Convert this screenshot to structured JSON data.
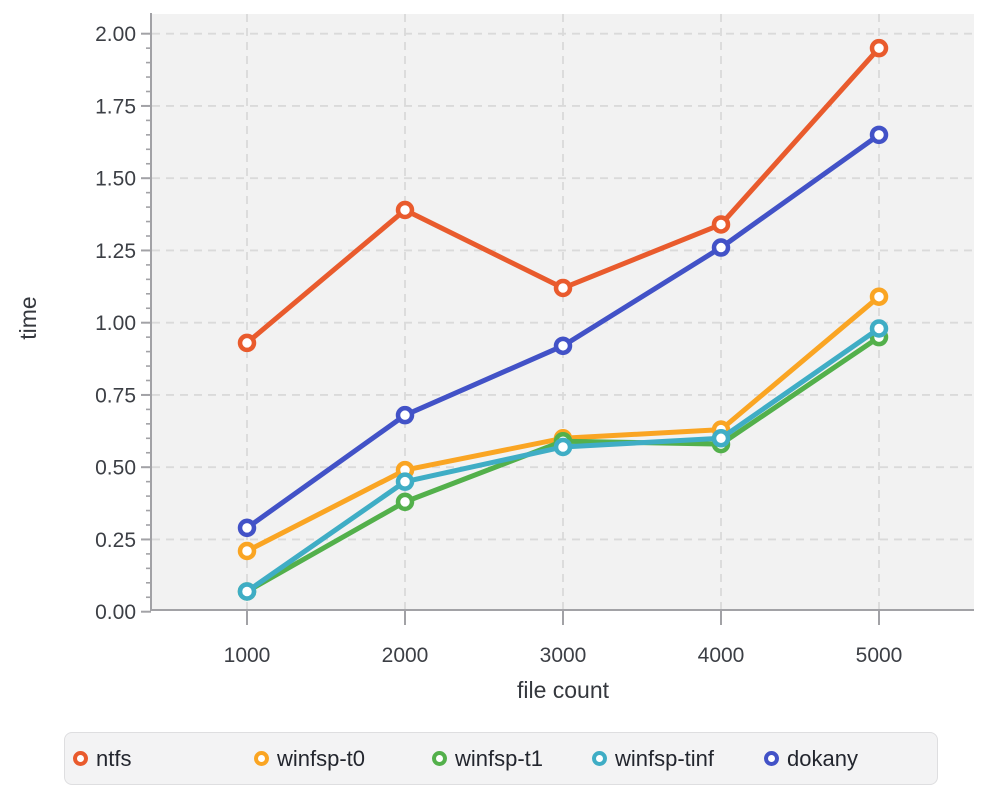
{
  "chart_data": {
    "type": "line",
    "title": "",
    "xlabel": "file count",
    "ylabel": "time",
    "x": [
      1000,
      2000,
      3000,
      4000,
      5000
    ],
    "xtick_labels": [
      "1000",
      "2000",
      "3000",
      "4000",
      "5000"
    ],
    "yticks": [
      0,
      0.25,
      0.5,
      0.75,
      1.0,
      1.25,
      1.5,
      1.75,
      2.0
    ],
    "ytick_labels": [
      "0.00",
      "0.25",
      "0.50",
      "0.75",
      "1.00",
      "1.25",
      "1.50",
      "1.75",
      "2.00"
    ],
    "ytick_minor_step": 0.05,
    "xlim": [
      1000,
      5000
    ],
    "ylim": [
      0,
      2.0
    ],
    "grid": true,
    "grid_style": "dashed",
    "legend_position": "bottom",
    "series": [
      {
        "name": "ntfs",
        "color": "#e95b2d",
        "values": [
          0.93,
          1.39,
          1.12,
          1.34,
          1.95
        ]
      },
      {
        "name": "winfsp-t0",
        "color": "#faa523",
        "values": [
          0.21,
          0.49,
          0.6,
          0.63,
          1.09
        ]
      },
      {
        "name": "winfsp-t1",
        "color": "#53b04b",
        "values": [
          0.07,
          0.38,
          0.59,
          0.58,
          0.95
        ]
      },
      {
        "name": "winfsp-tinf",
        "color": "#3fadc5",
        "values": [
          0.07,
          0.45,
          0.57,
          0.6,
          0.98
        ]
      },
      {
        "name": "dokany",
        "color": "#4252c7",
        "values": [
          0.29,
          0.68,
          0.92,
          1.26,
          1.65
        ]
      }
    ],
    "colors": {
      "plot_background": "#f2f2f2",
      "gridline": "#dadada",
      "axis_line": "#a2a2a6",
      "tick_text": "#3c3f45",
      "axis_title_text": "#35383e",
      "legend_background": "#f3f3f4",
      "legend_border": "#dedee0",
      "legend_text": "#23262e"
    }
  }
}
